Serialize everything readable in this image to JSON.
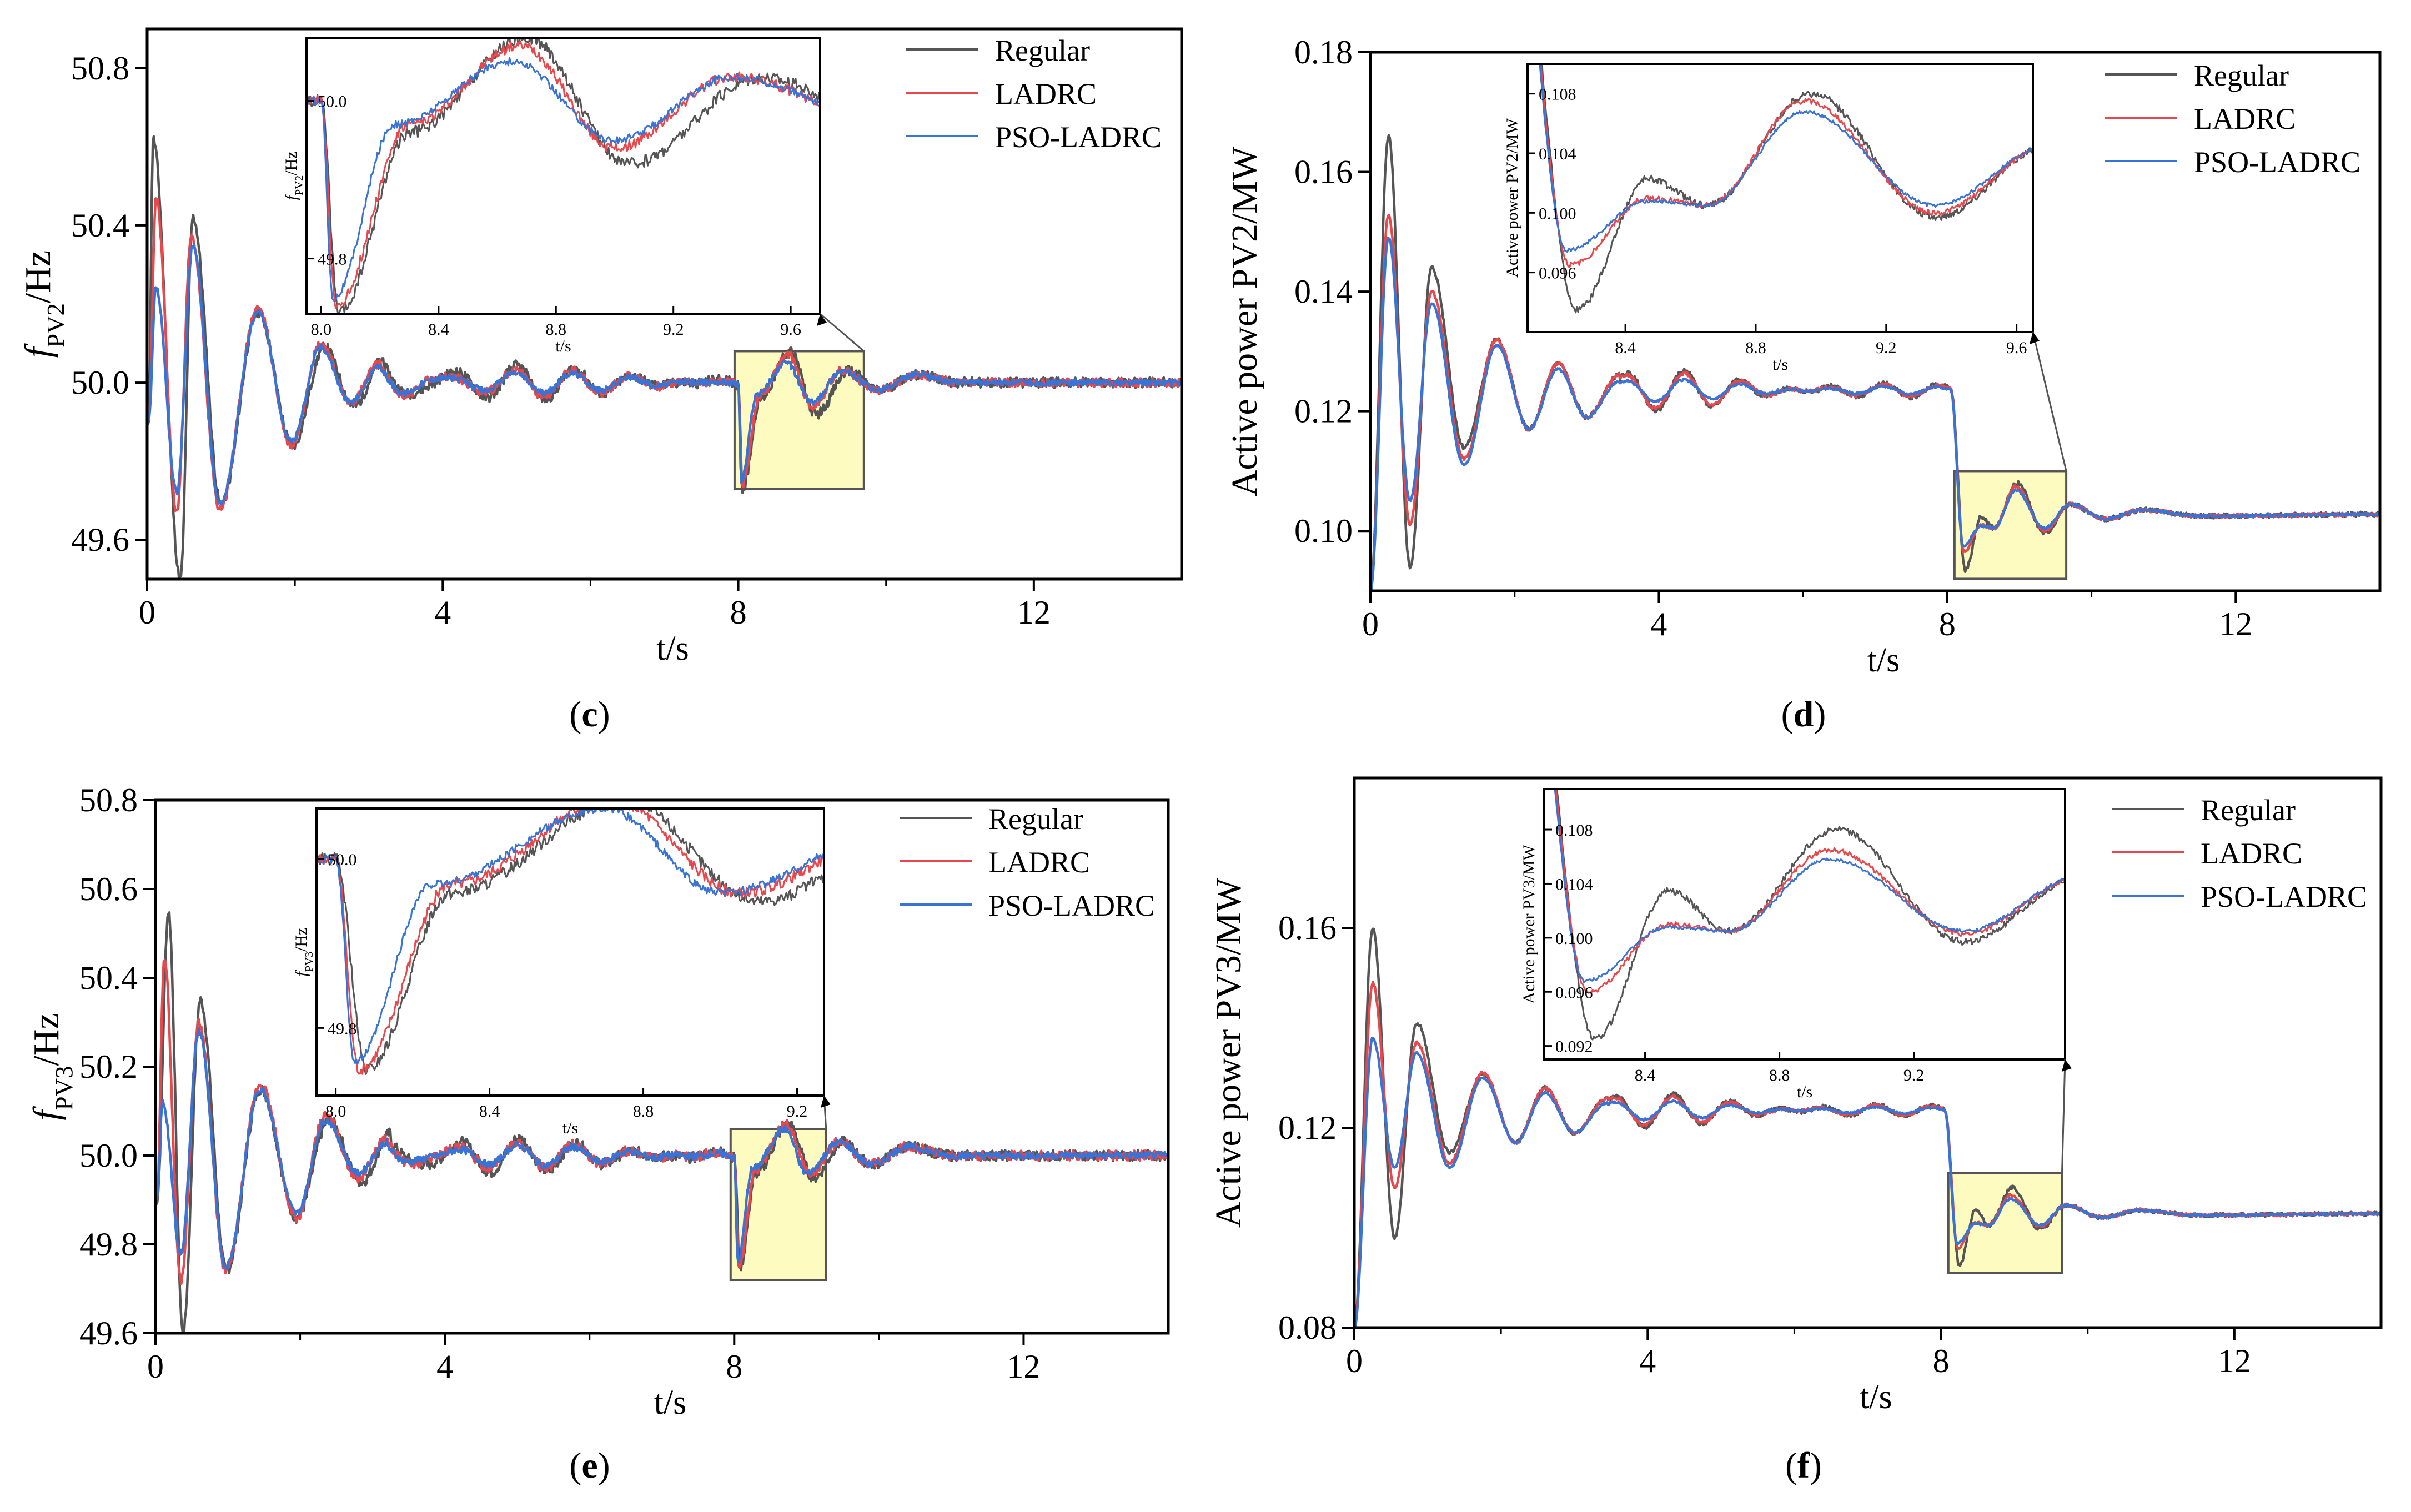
{
  "chart_data": [
    {
      "id": "c",
      "type": "line",
      "panel_label": "c",
      "panel_label_open": "(",
      "panel_label_close": ")",
      "ylabel": {
        "main": "f",
        "sub": "PV2",
        "rest": "/Hz"
      },
      "xlabel": "t/s",
      "xlim": [
        0,
        14
      ],
      "ylim": [
        49.5,
        50.9
      ],
      "xticks": [
        "0",
        "4",
        "8",
        "12"
      ],
      "xtick_values": [
        0,
        4,
        8,
        12
      ],
      "yticks": [
        "49.6",
        "50.0",
        "50.4",
        "50.8"
      ],
      "ytick_values": [
        49.6,
        50.0,
        50.4,
        50.8
      ],
      "legend": [
        "Regular",
        "LADRC",
        "PSO-LADRC"
      ],
      "inset": {
        "xlim": [
          7.95,
          9.7
        ],
        "ylim": [
          49.73,
          50.08
        ],
        "xticks": [
          "8.0",
          "8.4",
          "8.8",
          "9.2",
          "9.6"
        ],
        "xtick_values": [
          8.0,
          8.4,
          8.8,
          9.2,
          9.6
        ],
        "yticks": [
          "49.8",
          "50.0"
        ],
        "ytick_values": [
          49.8,
          50.0
        ],
        "ylabel": {
          "main": "f",
          "sub": "PV2",
          "rest": "/Hz"
        },
        "xlabel": "t/s"
      },
      "series": [
        {
          "name": "Regular",
          "start": [
            0.02,
            49.9,
            0.08,
            50.62,
            0.45,
            49.5,
            0.62,
            50.42,
            1.0,
            49.69,
            1.5,
            50.18,
            1.97,
            49.84,
            2.4,
            50.09,
            2.8,
            49.94,
            3.2,
            50.06
          ],
          "settle": 50.0,
          "decay": 0.4,
          "omega": 7.2,
          "amp": 0.03,
          "noise": 0.013,
          "event": [
            8.0,
            50.0,
            8.06,
            49.73,
            8.3,
            49.96,
            8.7,
            50.08,
            9.05,
            49.92,
            9.5,
            50.03,
            9.9,
            49.98,
            10.4,
            50.02,
            11.0,
            50.0
          ],
          "seed": 11
        },
        {
          "name": "LADRC",
          "start": [
            0.02,
            49.9,
            0.12,
            50.47,
            0.4,
            49.67,
            0.6,
            50.37,
            0.98,
            49.68,
            1.5,
            50.19,
            1.95,
            49.84,
            2.35,
            50.1,
            2.75,
            49.95,
            3.15,
            50.05
          ],
          "settle": 50.0,
          "decay": 0.4,
          "omega": 7.2,
          "amp": 0.025,
          "noise": 0.011,
          "event": [
            8.0,
            50.0,
            8.05,
            49.74,
            8.3,
            49.97,
            8.68,
            50.07,
            9.0,
            49.94,
            9.4,
            50.03,
            9.9,
            49.98,
            10.4,
            50.02,
            11.0,
            50.0
          ],
          "seed": 23
        },
        {
          "name": "PSO-LADRC",
          "start": [
            0.02,
            49.9,
            0.12,
            50.24,
            0.4,
            49.72,
            0.62,
            50.35,
            0.98,
            49.69,
            1.5,
            50.18,
            1.95,
            49.85,
            2.35,
            50.09,
            2.75,
            49.95,
            3.15,
            50.04
          ],
          "settle": 50.0,
          "decay": 0.4,
          "omega": 7.2,
          "amp": 0.02,
          "noise": 0.008,
          "event": [
            8.0,
            50.0,
            8.04,
            49.75,
            8.25,
            49.97,
            8.65,
            50.05,
            9.0,
            49.95,
            9.4,
            50.03,
            9.9,
            49.98,
            10.4,
            50.02,
            11.0,
            50.0
          ],
          "seed": 37
        }
      ]
    },
    {
      "id": "d",
      "type": "line",
      "panel_label": "d",
      "panel_label_open": "(",
      "panel_label_close": ")",
      "ylabel": {
        "main": "Active power PV2/MW",
        "sub": "",
        "rest": ""
      },
      "xlabel": "t/s",
      "xlim": [
        0,
        14
      ],
      "ylim": [
        0.09,
        0.18
      ],
      "xticks": [
        "0",
        "4",
        "8",
        "12"
      ],
      "xtick_values": [
        0,
        4,
        8,
        12
      ],
      "yticks": [
        "0.10",
        "0.12",
        "0.14",
        "0.16",
        "0.18"
      ],
      "ytick_values": [
        0.1,
        0.12,
        0.14,
        0.16,
        0.18
      ],
      "legend": [
        "Regular",
        "LADRC",
        "PSO-LADRC"
      ],
      "inset": {
        "xlim": [
          8.1,
          9.65
        ],
        "ylim": [
          0.092,
          0.11
        ],
        "xticks": [
          "8.4",
          "8.8",
          "9.2",
          "9.6"
        ],
        "xtick_values": [
          8.4,
          8.8,
          9.2,
          9.6
        ],
        "yticks": [
          "0.096",
          "0.100",
          "0.104",
          "0.108"
        ],
        "ytick_values": [
          0.096,
          0.1,
          0.104,
          0.108
        ],
        "ylabel": {
          "main": "Active power PV2/MW",
          "sub": "",
          "rest": ""
        },
        "xlabel": "t/s"
      },
      "series": [
        {
          "name": "Regular",
          "start": [
            0.0,
            0.09,
            0.25,
            0.166,
            0.55,
            0.094,
            0.85,
            0.144,
            1.3,
            0.114,
            1.75,
            0.132,
            2.2,
            0.117,
            2.6,
            0.128,
            3.0,
            0.119,
            3.45,
            0.126
          ],
          "settle": 0.1235,
          "decay": 0.45,
          "omega": 7.0,
          "amp": 0.002,
          "noise": 0.0004,
          "event": [
            8.05,
            0.1235,
            8.25,
            0.0935,
            8.47,
            0.1023,
            8.65,
            0.1005,
            8.97,
            0.108,
            9.35,
            0.0997,
            9.7,
            0.1045,
            10.2,
            0.102,
            10.7,
            0.1035,
            11.5,
            0.1025,
            14.0,
            0.1028
          ],
          "seed": 5
        },
        {
          "name": "LADRC",
          "start": [
            0.0,
            0.09,
            0.25,
            0.153,
            0.55,
            0.101,
            0.85,
            0.14,
            1.3,
            0.112,
            1.75,
            0.132,
            2.2,
            0.117,
            2.6,
            0.128,
            3.0,
            0.119,
            3.45,
            0.126
          ],
          "settle": 0.1235,
          "decay": 0.45,
          "omega": 7.0,
          "amp": 0.0015,
          "noise": 0.0003,
          "event": [
            8.05,
            0.1235,
            8.23,
            0.0965,
            8.47,
            0.101,
            8.65,
            0.1005,
            8.95,
            0.1075,
            9.35,
            0.1,
            9.7,
            0.1045,
            10.2,
            0.102,
            10.7,
            0.1035,
            11.5,
            0.1025,
            14.0,
            0.1028
          ],
          "seed": 19
        },
        {
          "name": "PSO-LADRC",
          "start": [
            0.0,
            0.09,
            0.25,
            0.149,
            0.55,
            0.105,
            0.85,
            0.138,
            1.3,
            0.111,
            1.75,
            0.131,
            2.2,
            0.117,
            2.6,
            0.127,
            3.0,
            0.119,
            3.45,
            0.125
          ],
          "settle": 0.1235,
          "decay": 0.45,
          "omega": 7.0,
          "amp": 0.001,
          "noise": 0.0002,
          "event": [
            8.05,
            0.1235,
            8.22,
            0.0975,
            8.47,
            0.1008,
            8.65,
            0.1005,
            8.95,
            0.1068,
            9.35,
            0.1005,
            9.7,
            0.1045,
            10.2,
            0.102,
            10.7,
            0.1035,
            11.5,
            0.1025,
            14.0,
            0.1028
          ],
          "seed": 41
        }
      ]
    },
    {
      "id": "e",
      "type": "line",
      "panel_label": "e",
      "panel_label_open": "(",
      "panel_label_close": ")",
      "ylabel": {
        "main": "f",
        "sub": "PV3",
        "rest": "/Hz"
      },
      "xlabel": "t/s",
      "xlim": [
        0,
        14
      ],
      "ylim": [
        49.6,
        50.8
      ],
      "xticks": [
        "0",
        "4",
        "8",
        "12"
      ],
      "xtick_values": [
        0,
        4,
        8,
        12
      ],
      "yticks": [
        "49.6",
        "49.8",
        "50.0",
        "50.2",
        "50.4",
        "50.6",
        "50.8"
      ],
      "ytick_values": [
        49.6,
        49.8,
        50.0,
        50.2,
        50.4,
        50.6,
        50.8
      ],
      "legend": [
        "Regular",
        "LADRC",
        "PSO-LADRC"
      ],
      "inset": {
        "xlim": [
          7.95,
          9.27
        ],
        "ylim": [
          49.72,
          50.06
        ],
        "xticks": [
          "8.0",
          "8.4",
          "8.8",
          "9.2"
        ],
        "xtick_values": [
          8.0,
          8.4,
          8.8,
          9.2
        ],
        "yticks": [
          "49.8",
          "50.0"
        ],
        "ytick_values": [
          49.8,
          50.0
        ],
        "ylabel": {
          "main": "f",
          "sub": "PV3",
          "rest": "/Hz"
        },
        "xlabel": "t/s"
      },
      "series": [
        {
          "name": "Regular",
          "start": [
            0.02,
            49.9,
            0.18,
            50.55,
            0.38,
            49.6,
            0.62,
            50.35,
            0.98,
            49.74,
            1.45,
            50.15,
            1.95,
            49.86,
            2.4,
            50.08,
            2.85,
            49.94,
            3.25,
            50.05
          ],
          "settle": 50.0,
          "decay": 0.4,
          "omega": 7.2,
          "amp": 0.025,
          "noise": 0.012,
          "event": [
            8.0,
            50.0,
            8.08,
            49.75,
            8.3,
            49.96,
            8.75,
            50.07,
            9.1,
            49.95,
            9.5,
            50.03,
            9.9,
            49.98,
            10.4,
            50.02,
            11.0,
            50.0
          ],
          "seed": 7
        },
        {
          "name": "LADRC",
          "start": [
            0.02,
            49.9,
            0.12,
            50.45,
            0.35,
            49.72,
            0.6,
            50.3,
            0.97,
            49.74,
            1.45,
            50.16,
            1.95,
            49.86,
            2.35,
            50.09,
            2.8,
            49.95,
            3.2,
            50.04
          ],
          "settle": 50.0,
          "decay": 0.4,
          "omega": 7.2,
          "amp": 0.02,
          "noise": 0.011,
          "event": [
            8.0,
            50.0,
            8.06,
            49.75,
            8.3,
            49.97,
            8.72,
            50.07,
            9.05,
            49.96,
            9.45,
            50.03,
            9.9,
            49.98,
            10.4,
            50.02,
            11.0,
            50.0
          ],
          "seed": 29
        },
        {
          "name": "PSO-LADRC",
          "start": [
            0.02,
            49.9,
            0.1,
            50.12,
            0.35,
            49.78,
            0.6,
            50.28,
            0.97,
            49.75,
            1.45,
            50.15,
            1.95,
            49.87,
            2.35,
            50.08,
            2.8,
            49.96,
            3.2,
            50.03
          ],
          "settle": 50.0,
          "decay": 0.4,
          "omega": 7.2,
          "amp": 0.018,
          "noise": 0.008,
          "event": [
            8.0,
            50.0,
            8.05,
            49.76,
            8.25,
            49.97,
            8.7,
            50.06,
            9.0,
            49.96,
            9.45,
            50.03,
            9.9,
            49.98,
            10.4,
            50.02,
            11.0,
            50.0
          ],
          "seed": 43
        }
      ]
    },
    {
      "id": "f",
      "type": "line",
      "panel_label": "f",
      "panel_label_open": "(",
      "panel_label_close": ")",
      "ylabel": {
        "main": "Active power PV3/MW",
        "sub": "",
        "rest": ""
      },
      "xlabel": "t/s",
      "xlim": [
        0,
        14
      ],
      "ylim": [
        0.08,
        0.19
      ],
      "xticks": [
        "0",
        "4",
        "8",
        "12"
      ],
      "xtick_values": [
        0,
        4,
        8,
        12
      ],
      "yticks": [
        "0.08",
        "0.12",
        "0.16"
      ],
      "ytick_values": [
        0.08,
        0.12,
        0.16
      ],
      "legend": [
        "Regular",
        "LADRC",
        "PSO-LADRC"
      ],
      "inset": {
        "xlim": [
          8.1,
          9.65
        ],
        "ylim": [
          0.091,
          0.111
        ],
        "xticks": [
          "8.4",
          "8.8",
          "9.2"
        ],
        "xtick_values": [
          8.4,
          8.8,
          9.2
        ],
        "yticks": [
          "0.092",
          "0.096",
          "0.100",
          "0.104",
          "0.108"
        ],
        "ytick_values": [
          0.092,
          0.096,
          0.1,
          0.104,
          0.108
        ],
        "ylabel": {
          "main": "Active power PV3/MW",
          "sub": "",
          "rest": ""
        },
        "xlabel": "t/s"
      },
      "series": [
        {
          "name": "Regular",
          "start": [
            0.0,
            0.08,
            0.25,
            0.16,
            0.55,
            0.098,
            0.85,
            0.141,
            1.3,
            0.115,
            1.75,
            0.131,
            2.2,
            0.117,
            2.6,
            0.128,
            3.0,
            0.119,
            3.45,
            0.126
          ],
          "settle": 0.1235,
          "decay": 0.45,
          "omega": 7.0,
          "amp": 0.002,
          "noise": 0.0004,
          "event": [
            8.05,
            0.1235,
            8.25,
            0.0925,
            8.47,
            0.1035,
            8.65,
            0.1005,
            8.97,
            0.108,
            9.35,
            0.0997,
            9.7,
            0.1045,
            10.2,
            0.102,
            10.7,
            0.1035,
            11.5,
            0.1025,
            14.0,
            0.1028
          ],
          "seed": 3
        },
        {
          "name": "LADRC",
          "start": [
            0.0,
            0.08,
            0.25,
            0.149,
            0.55,
            0.108,
            0.85,
            0.137,
            1.3,
            0.113,
            1.75,
            0.131,
            2.2,
            0.117,
            2.6,
            0.128,
            3.0,
            0.119,
            3.45,
            0.126
          ],
          "settle": 0.1235,
          "decay": 0.45,
          "omega": 7.0,
          "amp": 0.0015,
          "noise": 0.0003,
          "event": [
            8.05,
            0.1235,
            8.23,
            0.096,
            8.47,
            0.101,
            8.65,
            0.1005,
            8.95,
            0.1065,
            9.35,
            0.1003,
            9.7,
            0.1045,
            10.2,
            0.102,
            10.7,
            0.1035,
            11.5,
            0.1025,
            14.0,
            0.1028
          ],
          "seed": 17
        },
        {
          "name": "PSO-LADRC",
          "start": [
            0.0,
            0.08,
            0.25,
            0.138,
            0.55,
            0.112,
            0.85,
            0.135,
            1.3,
            0.112,
            1.75,
            0.13,
            2.2,
            0.117,
            2.6,
            0.127,
            3.0,
            0.119,
            3.45,
            0.125
          ],
          "settle": 0.1235,
          "decay": 0.45,
          "omega": 7.0,
          "amp": 0.001,
          "noise": 0.0002,
          "event": [
            8.05,
            0.1235,
            8.22,
            0.0968,
            8.47,
            0.1008,
            8.65,
            0.1005,
            8.95,
            0.1058,
            9.35,
            0.1005,
            9.7,
            0.1045,
            10.2,
            0.102,
            10.7,
            0.1035,
            11.5,
            0.1025,
            14.0,
            0.1028
          ],
          "seed": 31
        }
      ]
    }
  ],
  "colors": {
    "Regular": "#555555",
    "LADRC": "#e8474b",
    "PSO-LADRC": "#3a73d6"
  }
}
